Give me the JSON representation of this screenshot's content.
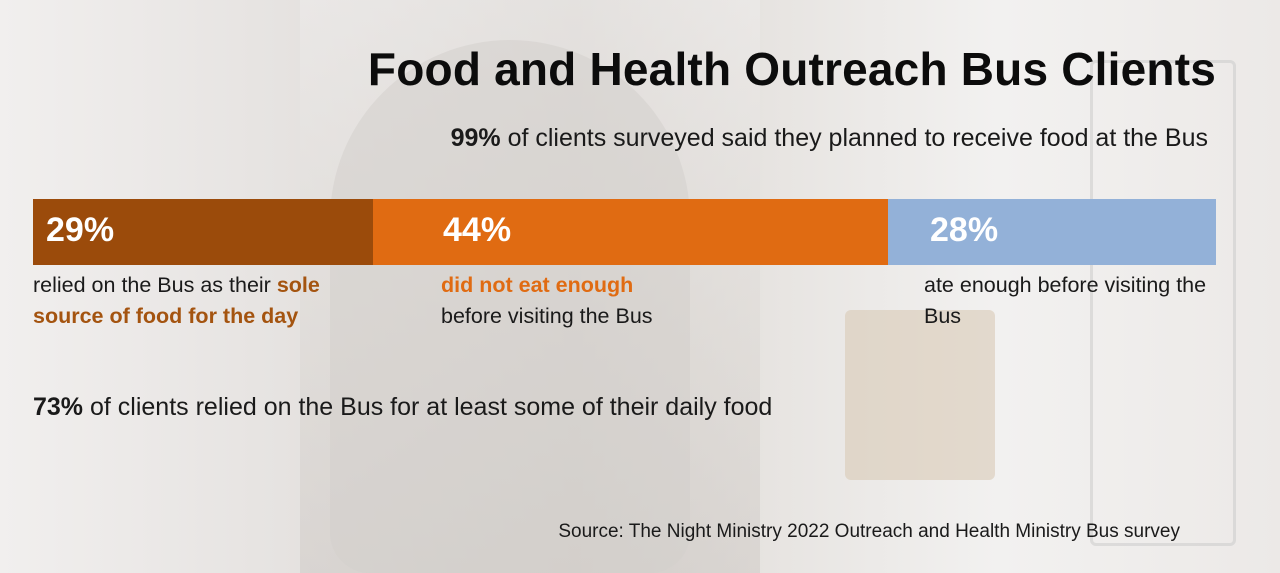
{
  "title": "Food and Health Outreach Bus Clients",
  "subtitle": {
    "bold": "99%",
    "text": "of clients surveyed said they planned to receive food at the Bus"
  },
  "chart_data": {
    "type": "bar",
    "orientation": "horizontal-stacked",
    "categories": [
      "relied on the Bus as their sole source of food for the day",
      "did not eat enough before visiting the Bus",
      "ate enough before visiting the Bus"
    ],
    "values": [
      29,
      44,
      28
    ],
    "value_labels": [
      "29%",
      "44%",
      "28%"
    ],
    "colors": [
      "#9b4b0b",
      "#e06b12",
      "#93b1d8"
    ],
    "title": "Food and Health Outreach Bus Clients"
  },
  "segments": [
    {
      "label": "29%",
      "color": "#9b4b0b",
      "desc_before": "relied on the Bus as their",
      "desc_highlight": "sole source of food for the day",
      "desc_after": "",
      "highlight_color": "#a45410"
    },
    {
      "label": "44%",
      "color": "#e06b12",
      "desc_before": "",
      "desc_highlight": "did not eat enough",
      "desc_after": "before visiting the Bus",
      "highlight_color": "#e06b12"
    },
    {
      "label": "28%",
      "color": "#93b1d8",
      "desc_before": "ate enough before visiting the Bus",
      "desc_highlight": "",
      "desc_after": "",
      "highlight_color": "#1a1a1a"
    }
  ],
  "note73": {
    "bold": "73%",
    "text": "of clients relied on the Bus for at least some of their daily food"
  },
  "source": "Source: The Night Ministry 2022 Outreach and Health Ministry Bus survey"
}
